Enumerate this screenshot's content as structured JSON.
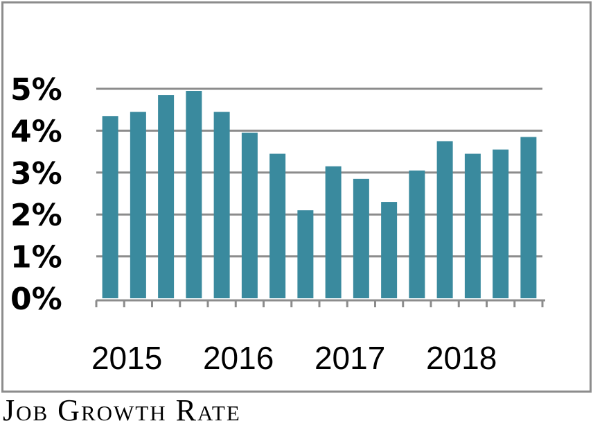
{
  "chart_data": {
    "type": "bar",
    "title": "Job Growth Rate",
    "xlabel": "",
    "ylabel": "",
    "ylim": [
      0,
      5
    ],
    "grid": true,
    "yticks": [
      "0%",
      "1%",
      "2%",
      "3%",
      "4%",
      "5%"
    ],
    "xtick_labels": [
      "2015",
      "2016",
      "2017",
      "2018"
    ],
    "values": [
      4.35,
      4.45,
      4.85,
      4.95,
      4.45,
      3.95,
      3.45,
      2.1,
      3.15,
      2.85,
      2.3,
      3.05,
      3.75,
      3.45,
      3.55,
      3.85
    ],
    "bar_color": "#3a8a9e",
    "grid_color": "#8c8c8c"
  }
}
